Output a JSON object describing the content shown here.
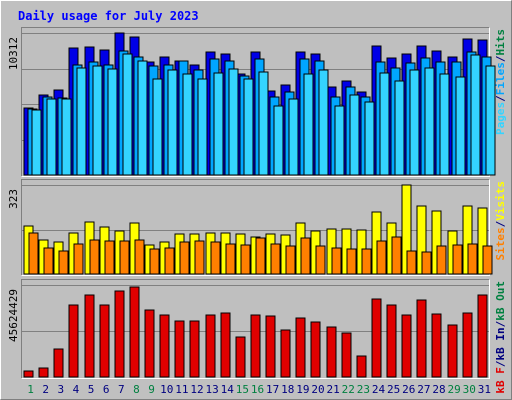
{
  "colors": {
    "background": "#c0c0c0",
    "title": "#0000ff",
    "panel": "#bfbfbf",
    "grid": "#808080",
    "hits": "#0000e6",
    "files": "#00a6ff",
    "pages": "#34d4ff",
    "visits": "#ffff00",
    "sites": "#ff8000",
    "kb": "#e00000",
    "weekend_label": "#008040",
    "weekday_label": "#000080"
  },
  "chart_data": {
    "type": "bar",
    "title": "Daily usage for July 2023",
    "categories": [
      "1",
      "2",
      "3",
      "4",
      "5",
      "6",
      "7",
      "8",
      "9",
      "10",
      "11",
      "12",
      "13",
      "14",
      "15",
      "16",
      "17",
      "18",
      "19",
      "20",
      "21",
      "22",
      "23",
      "24",
      "25",
      "26",
      "27",
      "28",
      "29",
      "30",
      "31"
    ],
    "weekend_days": [
      "1",
      "8",
      "9",
      "15",
      "16",
      "22",
      "23",
      "29",
      "30"
    ],
    "panels": [
      {
        "name": "hits-files-pages",
        "max_label": "10312",
        "ylim": [
          0,
          10312
        ],
        "legend": [
          {
            "label": "Pages",
            "color": "#34d4ff"
          },
          {
            "label": "/",
            "color": "#000080"
          },
          {
            "label": "Files",
            "color": "#00a6ff"
          },
          {
            "label": "/",
            "color": "#000080"
          },
          {
            "label": "Hits",
            "color": "#008040"
          }
        ],
        "series": [
          {
            "name": "Hits",
            "color": "#0000e6",
            "values": [
              4900,
              5800,
              6200,
              9200,
              9300,
              9100,
              10300,
              10050,
              8200,
              8600,
              8300,
              8000,
              8900,
              8800,
              7300,
              8900,
              6100,
              6500,
              8900,
              8800,
              6400,
              6800,
              6000,
              9400,
              8500,
              8800,
              9400,
              9000,
              8600,
              9900,
              9800
            ]
          },
          {
            "name": "Files",
            "color": "#00a6ff",
            "values": [
              4800,
              5700,
              5600,
              8000,
              8200,
              8000,
              9000,
              8600,
              7900,
              8000,
              8300,
              7600,
              8400,
              8300,
              7200,
              8400,
              5700,
              6000,
              8400,
              8300,
              5700,
              6400,
              5700,
              8200,
              7800,
              8100,
              8500,
              8200,
              8200,
              8900,
              8600
            ]
          },
          {
            "name": "Pages",
            "color": "#34d4ff",
            "values": [
              4700,
              5500,
              5500,
              7800,
              7900,
              7700,
              8800,
              8300,
              7000,
              7600,
              7300,
              7000,
              7400,
              7700,
              7000,
              7500,
              5000,
              5500,
              7300,
              7600,
              5000,
              5800,
              5300,
              7400,
              6800,
              7600,
              7800,
              7300,
              7100,
              8700,
              7900
            ]
          }
        ]
      },
      {
        "name": "visits-sites",
        "max_label": "323",
        "ylim": [
          0,
          323
        ],
        "legend": [
          {
            "label": "Sites",
            "color": "#ff8000"
          },
          {
            "label": "/",
            "color": "#000080"
          },
          {
            "label": "Visits",
            "color": "#ffff00"
          }
        ],
        "series": [
          {
            "name": "Visits",
            "color": "#ffff00",
            "values": [
              175,
              125,
              115,
              150,
              190,
              170,
              155,
              185,
              105,
              115,
              145,
              145,
              150,
              150,
              145,
              135,
              145,
              140,
              185,
              155,
              165,
              165,
              160,
              225,
              185,
              323,
              245,
              230,
              155,
              245,
              240
            ]
          },
          {
            "name": "Sites",
            "color": "#ff8000",
            "values": [
              150,
              95,
              85,
              110,
              125,
              120,
              120,
              125,
              90,
              95,
              115,
              120,
              115,
              110,
              105,
              130,
              110,
              100,
              130,
              100,
              95,
              90,
              90,
              120,
              135,
              85,
              80,
              100,
              105,
              110,
              100
            ]
          }
        ]
      },
      {
        "name": "kb",
        "max_label": "45624429",
        "ylim": [
          0,
          45624429
        ],
        "legend": [
          {
            "label": "kB F",
            "color": "#e00000"
          },
          {
            "label": "/",
            "color": "#000080"
          },
          {
            "label": "kB In",
            "color": "#000080"
          },
          {
            "label": "/",
            "color": "#000080"
          },
          {
            "label": "kB Out",
            "color": "#008040"
          }
        ],
        "series": [
          {
            "name": "kB F",
            "color": "#e00000",
            "values": [
              2800000,
              4500000,
              13800000,
              35500000,
              40500000,
              35500000,
              42500000,
              44500000,
              33000000,
              30700000,
              27800000,
              28000000,
              30800000,
              31600000,
              19600000,
              30900000,
              30200000,
              23100000,
              29200000,
              27300000,
              24700000,
              21800000,
              10300000,
              38800000,
              35500000,
              30700000,
              38000000,
              31300000,
              25800000,
              31700000,
              40800000
            ]
          }
        ]
      }
    ]
  }
}
